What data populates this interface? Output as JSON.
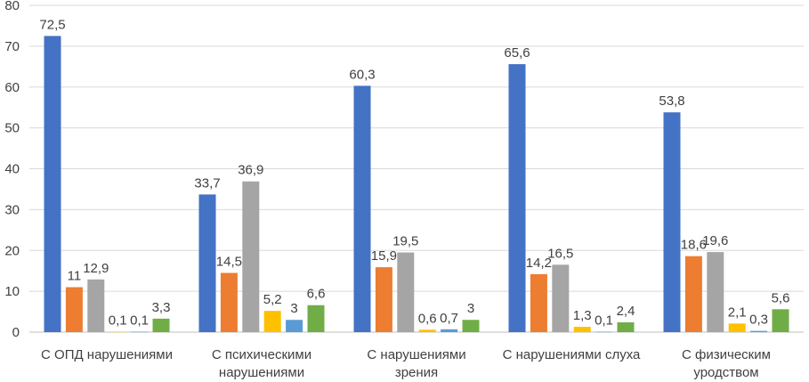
{
  "chart_data": {
    "type": "bar",
    "title": "",
    "xlabel": "",
    "ylabel": "",
    "ylim": [
      0,
      80
    ],
    "yticks": [
      0,
      10,
      20,
      30,
      40,
      50,
      60,
      70,
      80
    ],
    "grid": true,
    "legend": "none",
    "categories": [
      [
        "С ОПД нарушениями"
      ],
      [
        "С психическими",
        "нарушениями"
      ],
      [
        "С нарушениями",
        "зрения"
      ],
      [
        "С нарушениями слуха"
      ],
      [
        "С физическим",
        "уродством"
      ]
    ],
    "series": [
      {
        "color": "#4472C4",
        "values": [
          72.5,
          33.7,
          60.3,
          65.6,
          53.8
        ],
        "labels": [
          "72,5",
          "33,7",
          "60,3",
          "65,6",
          "53,8"
        ]
      },
      {
        "color": "#ED7D31",
        "values": [
          11,
          14.5,
          15.9,
          14.2,
          18.6
        ],
        "labels": [
          "11",
          "14,5",
          "15,9",
          "14,2",
          "18,6"
        ]
      },
      {
        "color": "#A5A5A5",
        "values": [
          12.9,
          36.9,
          19.5,
          16.5,
          19.6
        ],
        "labels": [
          "12,9",
          "36,9",
          "19,5",
          "16,5",
          "19,6"
        ]
      },
      {
        "color": "#FFC000",
        "values": [
          0.1,
          5.2,
          0.6,
          1.3,
          2.1
        ],
        "labels": [
          "0,1",
          "5,2",
          "0,6",
          "1,3",
          "2,1"
        ]
      },
      {
        "color": "#5B9BD5",
        "values": [
          0.1,
          3,
          0.7,
          0.1,
          0.3
        ],
        "labels": [
          "0,1",
          "3",
          "0,7",
          "0,1",
          "0,3"
        ]
      },
      {
        "color": "#70AD47",
        "values": [
          3.3,
          6.6,
          3,
          2.4,
          5.6
        ],
        "labels": [
          "3,3",
          "6,6",
          "3",
          "2,4",
          "5,6"
        ]
      }
    ]
  }
}
